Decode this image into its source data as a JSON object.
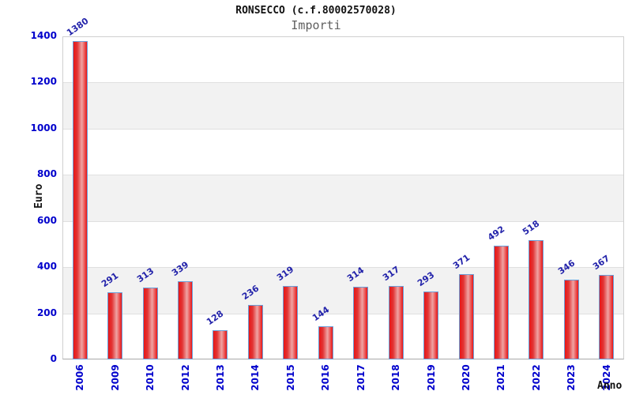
{
  "header": {
    "title": "RONSECCO (c.f.80002570028)",
    "subtitle": "Importi"
  },
  "chart_data": {
    "type": "bar",
    "title": "RONSECCO (c.f.80002570028)",
    "subtitle": "Importi",
    "xlabel": "Anno",
    "ylabel": "Euro",
    "categories": [
      "2006",
      "2009",
      "2010",
      "2012",
      "2013",
      "2014",
      "2015",
      "2016",
      "2017",
      "2018",
      "2019",
      "2020",
      "2021",
      "2022",
      "2023",
      "2024"
    ],
    "values": [
      1380,
      291,
      313,
      339,
      128,
      236,
      319,
      144,
      314,
      317,
      293,
      371,
      492,
      518,
      346,
      367
    ],
    "ylim": [
      0,
      1400
    ],
    "y_ticks": [
      0,
      200,
      400,
      600,
      800,
      1000,
      1200,
      1400
    ],
    "grid": "horizontal, alternating gray bands every 200",
    "legend": "none"
  },
  "colors": {
    "bar_fill_edge": "#e81616",
    "bar_fill_mid": "#efa4a4",
    "bar_border": "#6b9fd8",
    "axis_tick_blue": "#0000cc",
    "value_label_blue": "#2222aa",
    "band_gray": "#f2f2f2",
    "plot_border": "#cfcfcf",
    "title_color": "#111111",
    "subtitle_color": "#606060"
  }
}
